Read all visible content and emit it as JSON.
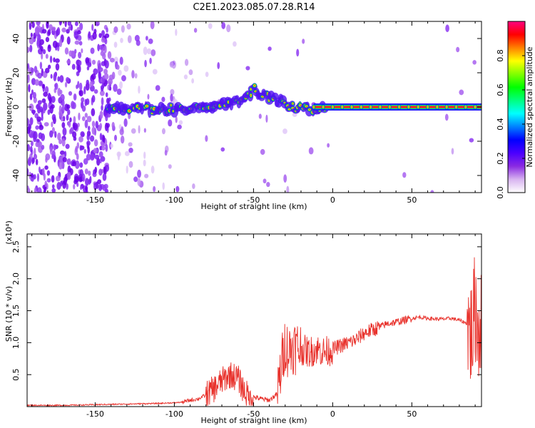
{
  "page": {
    "title": "C2E1.2023.085.07.28.R14"
  },
  "chart_data": [
    {
      "type": "heatmap",
      "xlabel": "Height of straight line (km)",
      "ylabel": "Frequency (Hz)",
      "xlim": [
        -193,
        94
      ],
      "ylim": [
        -50,
        50
      ],
      "x_ticks": [
        -150,
        -100,
        -50,
        0,
        50
      ],
      "y_ticks": [
        -40,
        -20,
        0,
        20,
        40
      ],
      "colorbar": {
        "label": "Normalized spectral amplitude",
        "range": [
          0,
          1
        ],
        "ticks": [
          0.0,
          0.2,
          0.4,
          0.6,
          0.8
        ],
        "tick_labels": [
          "0.0",
          "0.2",
          "0.4",
          "0.6",
          "0.8"
        ],
        "colormap": [
          "#ffffff",
          "#d8b4f0",
          "#8a2be2",
          "#4b00ff",
          "#0000ff",
          "#0080ff",
          "#00ffff",
          "#00ff80",
          "#00ff00",
          "#80ff00",
          "#ffff00",
          "#ff8000",
          "#ff0000",
          "#ff0080"
        ]
      },
      "ridge_centerline": {
        "x": [
          -140,
          -120,
          -100,
          -80,
          -70,
          -60,
          -55,
          -50,
          -45,
          -40,
          -35,
          -30,
          -25,
          -20,
          -10,
          0,
          20,
          50,
          90
        ],
        "y": [
          -2,
          -1,
          -1,
          0,
          2,
          3,
          5,
          10,
          8,
          5,
          4,
          3,
          0,
          -1,
          -1,
          0,
          0,
          0,
          0
        ]
      }
    },
    {
      "type": "line",
      "xlabel": "Height of straight line (km)",
      "ylabel": "SNR (10 * v/v)",
      "scale_label": "(x10⁴)",
      "xlim": [
        -193,
        94
      ],
      "ylim": [
        0,
        2.7
      ],
      "x_ticks": [
        -150,
        -100,
        -50,
        0,
        50
      ],
      "y_ticks": [
        0.5,
        1.0,
        1.5,
        2.0,
        2.5
      ],
      "y_tick_labels": [
        "0.5",
        "1.0",
        "1.5",
        "2.0",
        "2.5"
      ],
      "series": [
        {
          "color": "#e8302a",
          "x": [
            -193,
            -170,
            -150,
            -130,
            -110,
            -100,
            -95,
            -90,
            -85,
            -80,
            -75,
            -70,
            -65,
            -60,
            -55,
            -50,
            -45,
            -40,
            -35,
            -32,
            -30,
            -28,
            -25,
            -20,
            -15,
            -10,
            -5,
            0,
            5,
            10,
            15,
            20,
            25,
            30,
            35,
            40,
            45,
            50,
            55,
            60,
            65,
            70,
            75,
            80,
            85,
            88,
            90,
            92,
            94
          ],
          "y": [
            0.02,
            0.02,
            0.03,
            0.04,
            0.05,
            0.06,
            0.07,
            0.1,
            0.12,
            0.18,
            0.28,
            0.4,
            0.5,
            0.45,
            0.2,
            0.15,
            0.12,
            0.1,
            0.2,
            0.7,
            1.0,
            0.85,
            0.95,
            0.9,
            0.85,
            0.9,
            0.85,
            0.9,
            0.95,
            1.0,
            1.05,
            1.15,
            1.2,
            1.25,
            1.3,
            1.32,
            1.35,
            1.38,
            1.4,
            1.38,
            1.37,
            1.37,
            1.38,
            1.35,
            1.3,
            1.1,
            1.6,
            1.2,
            1.45
          ]
        }
      ]
    }
  ]
}
